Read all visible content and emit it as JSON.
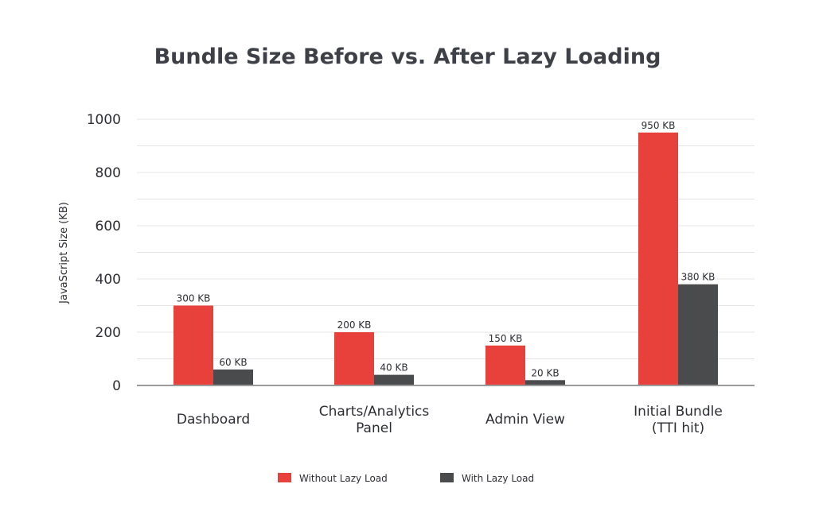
{
  "chart_data": {
    "type": "bar",
    "title": "Bundle Size Before vs. After Lazy Loading",
    "xlabel": "",
    "ylabel": "JavaScript Size (KB)",
    "ylim": [
      0,
      1000
    ],
    "yticks": [
      "0",
      "200",
      "400",
      "600",
      "800",
      "1000"
    ],
    "grid": true,
    "legend_position": "bottom",
    "categories": [
      [
        "Dashboard"
      ],
      [
        "Charts/Analytics",
        "Panel"
      ],
      [
        "Admin View"
      ],
      [
        "Initial Bundle",
        "(TTI hit)"
      ]
    ],
    "series": [
      {
        "name": "Without Lazy Load",
        "color": "#e8413b",
        "values": [
          300,
          200,
          150,
          950
        ],
        "labels": [
          "300 KB",
          "200 KB",
          "150 KB",
          "950 KB"
        ]
      },
      {
        "name": "With Lazy Load",
        "color": "#4a4b4d",
        "values": [
          60,
          40,
          20,
          380
        ],
        "labels": [
          "60 KB",
          "40 KB",
          "20 KB",
          "380 KB"
        ]
      }
    ]
  }
}
